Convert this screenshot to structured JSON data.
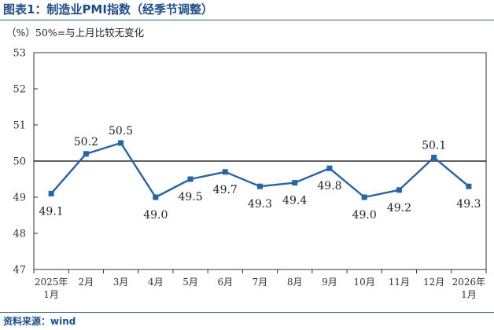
{
  "header": {
    "title": "图表1：制造业PMI指数（经季节调整）",
    "subtitle": "（%）50%=与上月比较无变化"
  },
  "footer": {
    "source": "资料来源：wind"
  },
  "colors": {
    "series": "#2463ae",
    "title": "#1f4e8c",
    "axis": "#333333",
    "reference_line": "#000000"
  },
  "chart_data": {
    "type": "line",
    "title": "图表1：制造业PMI指数（经季节调整）",
    "ylabel": "（%）",
    "xlabel": "",
    "ylim": [
      47,
      53
    ],
    "yticks": [
      47,
      48,
      49,
      50,
      51,
      52,
      53
    ],
    "reference_line": 50,
    "grid": false,
    "legend": "none",
    "marker": "square",
    "categories": [
      [
        "2025年",
        "1月"
      ],
      [
        "2月"
      ],
      [
        "3月"
      ],
      [
        "4月"
      ],
      [
        "5月"
      ],
      [
        "6月"
      ],
      [
        "7月"
      ],
      [
        "8月"
      ],
      [
        "9月"
      ],
      [
        "10月"
      ],
      [
        "11月"
      ],
      [
        "12月"
      ],
      [
        "2026年",
        "1月"
      ]
    ],
    "series": [
      {
        "values": [
          49.1,
          50.2,
          50.5,
          49.0,
          49.5,
          49.7,
          49.3,
          49.4,
          49.8,
          49.0,
          49.2,
          50.1,
          49.3
        ],
        "labels": [
          "49.1",
          "50.2",
          "50.5",
          "49.0",
          "49.5",
          "49.7",
          "49.3",
          "49.4",
          "49.8",
          "49.0",
          "49.2",
          "50.1",
          "49.3"
        ],
        "label_position": [
          "below",
          "above",
          "above",
          "below",
          "below",
          "below",
          "below",
          "below",
          "below",
          "below",
          "below",
          "above",
          "below"
        ]
      }
    ]
  }
}
